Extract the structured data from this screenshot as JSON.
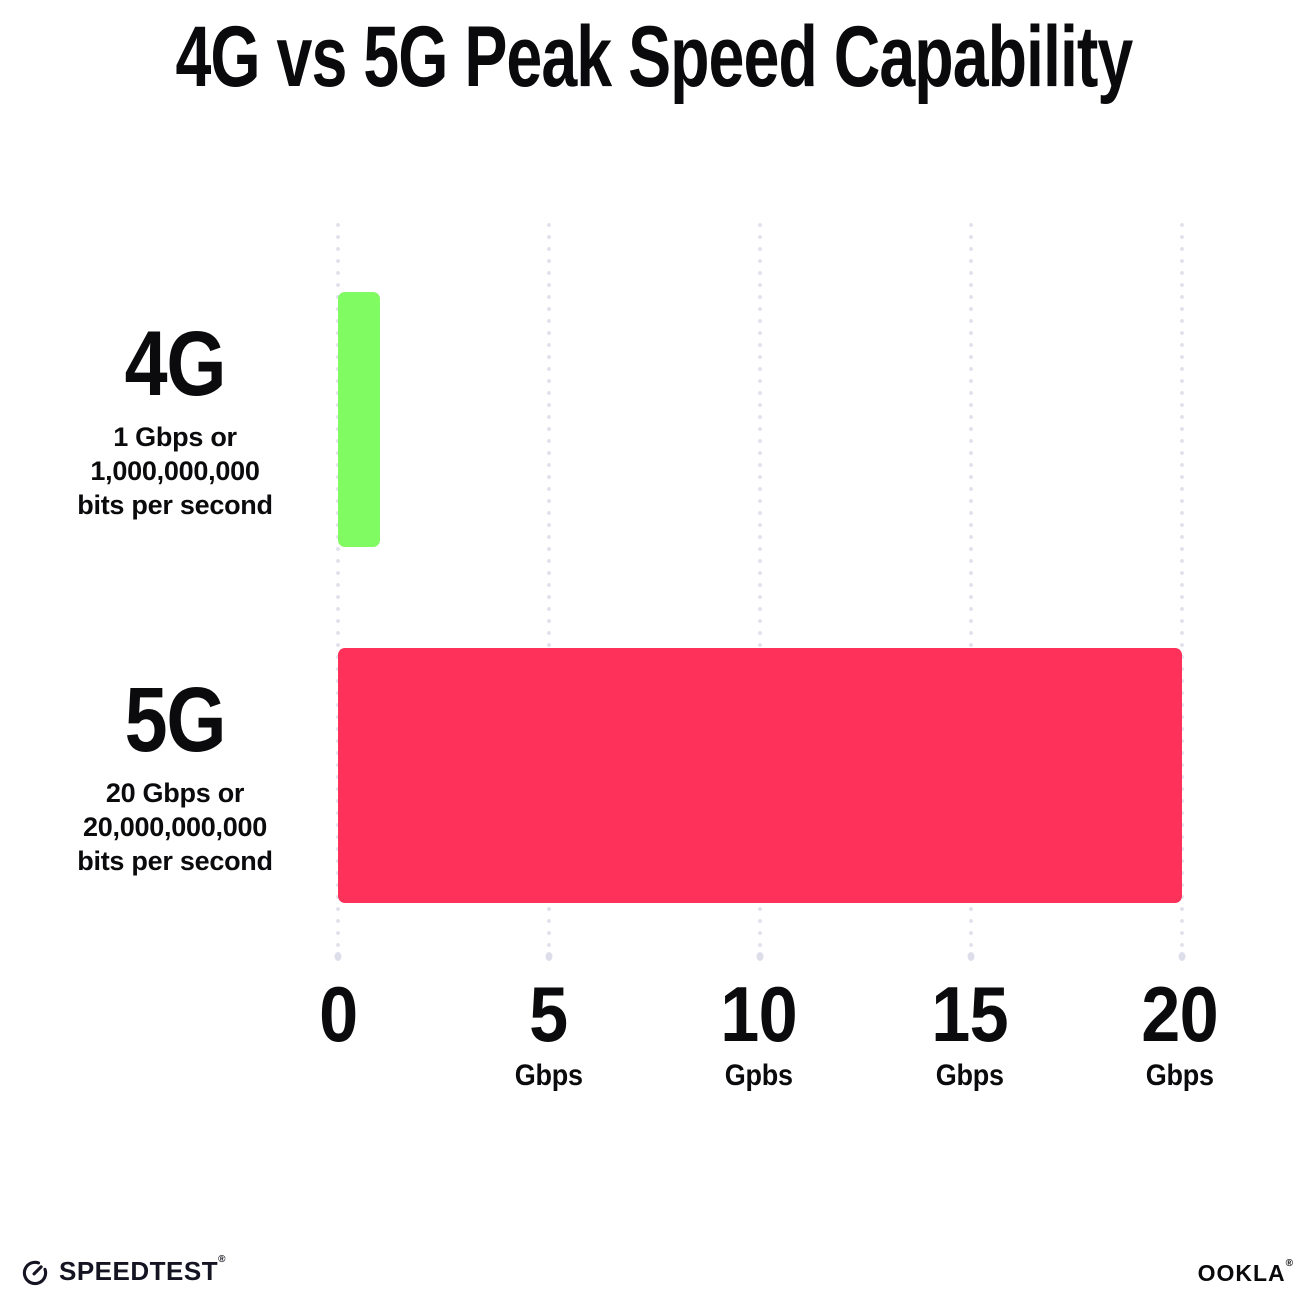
{
  "title": "4G vs 5G Peak Speed Capability",
  "chart_data": {
    "type": "bar",
    "orientation": "horizontal",
    "title": "4G vs 5G Peak Speed Capability",
    "categories": [
      "4G",
      "5G"
    ],
    "values": [
      1,
      20
    ],
    "unit": "Gbps",
    "bar_colors": [
      "#80FB61",
      "#FD3159"
    ],
    "xlim": [
      0,
      20
    ],
    "grid": "dotted vertical gridlines every 5 Gbps, legend none",
    "rows": [
      {
        "name": "4G",
        "value_gbps": 1,
        "description_lines": [
          "1 Gbps or",
          "1,000,000,000",
          "bits per second"
        ]
      },
      {
        "name": "5G",
        "value_gbps": 20,
        "description_lines": [
          "20 Gbps or",
          "20,000,000,000",
          "bits per second"
        ]
      }
    ],
    "x_ticks": [
      {
        "label": "0",
        "unit": "",
        "position_pct": 0
      },
      {
        "label": "5",
        "unit": "Gbps",
        "position_pct": 25
      },
      {
        "label": "10",
        "unit": "Gpbs",
        "position_pct": 50
      },
      {
        "label": "15",
        "unit": "Gbps",
        "position_pct": 75
      },
      {
        "label": "20",
        "unit": "Gbps",
        "position_pct": 100
      }
    ]
  },
  "footer": {
    "speedtest_brand": "SPEEDTEST",
    "speedtest_trademark": "®",
    "ookla_brand": "OOKLA",
    "ookla_trademark": "®"
  },
  "colors": {
    "bar_4g": "#80FB61",
    "bar_5g": "#FD3159",
    "gridline": "#E3E3EE",
    "text": "#0B0B0D",
    "background": "#FFFFFF"
  }
}
